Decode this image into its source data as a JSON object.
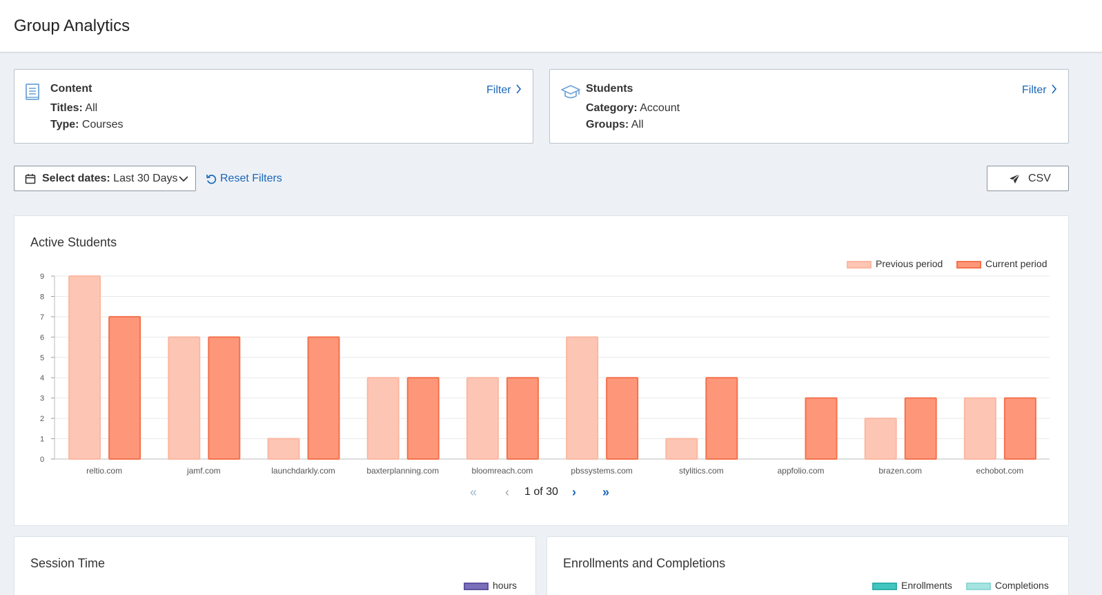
{
  "page": {
    "title": "Group Analytics"
  },
  "content_filter": {
    "title": "Content",
    "icon": "book-icon",
    "rows": [
      {
        "label": "Titles:",
        "value": " All"
      },
      {
        "label": "Type:",
        "value": " Courses"
      }
    ],
    "filter_label": "Filter"
  },
  "students_filter": {
    "title": "Students",
    "icon": "graduation-cap-icon",
    "rows": [
      {
        "label": "Category:",
        "value": " Account"
      },
      {
        "label": "Groups:",
        "value": " All"
      }
    ],
    "filter_label": "Filter"
  },
  "toolbar": {
    "date_label": "Select dates:",
    "date_value": " Last 30 Days",
    "reset_label": "Reset Filters",
    "csv_label": "CSV"
  },
  "active_students": {
    "title": "Active Students",
    "pagination": {
      "current": "1",
      "of": "of",
      "total": "30"
    }
  },
  "session_time": {
    "title": "Session Time",
    "legend": "hours"
  },
  "enrollments": {
    "title": "Enrollments and Completions",
    "legend": [
      "Enrollments",
      "Completions"
    ]
  },
  "colors": {
    "link": "#1a66b8",
    "previous_fill": "#fdc6b4",
    "previous_stroke": "#fbb7a1",
    "current_fill": "#fe9779",
    "current_stroke": "#f4714c",
    "hours": "#7a6fb8",
    "enrollments": "#43c6c0",
    "completions": "#a5e4e1"
  },
  "chart_data": {
    "type": "bar",
    "categories": [
      "reltio.com",
      "jamf.com",
      "launchdarkly.com",
      "baxterplanning.com",
      "bloomreach.com",
      "pbssystems.com",
      "stylitics.com",
      "appfolio.com",
      "brazen.com",
      "echobot.com"
    ],
    "series": [
      {
        "name": "Previous period",
        "values": [
          9,
          6,
          1,
          4,
          4,
          6,
          1,
          0,
          2,
          3
        ]
      },
      {
        "name": "Current period",
        "values": [
          7,
          6,
          6,
          4,
          4,
          4,
          4,
          3,
          3,
          3
        ]
      }
    ],
    "title": "Active Students",
    "xlabel": "",
    "ylabel": "",
    "ylim": [
      0,
      9
    ],
    "yticks": [
      0,
      1,
      2,
      3,
      4,
      5,
      6,
      7,
      8,
      9
    ],
    "grid": true,
    "legend": "top-right"
  }
}
